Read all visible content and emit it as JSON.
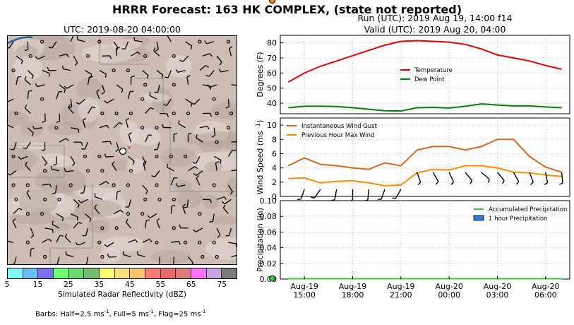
{
  "title": "HRRR Forecast: 163 HK COMPLEX, (state not reported)",
  "run": "Run (UTC): 2019 Aug 19, 14:00 f14",
  "valid": "Valid (UTC): 2019 Aug 20, 04:00",
  "map": {
    "title": "UTC: 2019-08-20 04:00:00",
    "colorbar_label": "Simulated Radar Reflectivity (dBZ)",
    "colorbar_ticks": [
      "5",
      "15",
      "25",
      "35",
      "45",
      "55",
      "65",
      "75"
    ],
    "colorbar_colors": [
      "#7ef7f7",
      "#6bbdf7",
      "#7b6ef7",
      "#73ff73",
      "#6bdb6b",
      "#73bd73",
      "#ffff73",
      "#f7e07b",
      "#ffc46b",
      "#ff7b7b",
      "#e86b6b",
      "#de7b7b",
      "#ff73ff",
      "#c8a4e0",
      "#7b7b7b"
    ],
    "barbs_note_pre": "Barbs: Half=2.5 ms",
    "barbs_note_mid1": ", Full=5 ms",
    "barbs_note_mid2": ", Flag=25 ms",
    "exp": "-1"
  },
  "chart_data": [
    {
      "type": "line",
      "ylabel": "Degrees (F)",
      "ylim": [
        33,
        85
      ],
      "yticks": [
        40,
        50,
        60,
        70,
        80
      ],
      "grid": true,
      "legend_position": "center-right",
      "x": [
        "2019-08-19 14:00",
        "15:00",
        "16:00",
        "17:00",
        "18:00",
        "19:00",
        "20:00",
        "21:00",
        "22:00",
        "23:00",
        "2019-08-20 00:00",
        "01:00",
        "02:00",
        "03:00",
        "04:00",
        "05:00",
        "06:00",
        "07:00"
      ],
      "series": [
        {
          "name": "Temperature",
          "color": "#e00000",
          "values": [
            54,
            60,
            64.5,
            68,
            71.5,
            75,
            78.5,
            81,
            81.5,
            81,
            80.5,
            79,
            76,
            72,
            70,
            68,
            65,
            62.5
          ]
        },
        {
          "name": "Dew Point",
          "color": "#008000",
          "values": [
            37,
            38,
            38,
            37.8,
            37,
            36,
            35,
            34.8,
            37,
            37.2,
            36.8,
            38,
            39.5,
            38.8,
            38.2,
            38.2,
            37.5,
            37
          ]
        }
      ],
      "highlight_x": "2019-08-20 04:00"
    },
    {
      "type": "line",
      "ylabel": "Wind Speed (ms",
      "ylabel_exp": "-1",
      "ylabel_close": ")",
      "ylim": [
        0,
        11
      ],
      "yticks": [
        0,
        2,
        4,
        6,
        8,
        10
      ],
      "grid": true,
      "legend_position": "top-left",
      "x": [
        "2019-08-19 14:00",
        "15:00",
        "16:00",
        "17:00",
        "18:00",
        "19:00",
        "20:00",
        "21:00",
        "22:00",
        "23:00",
        "2019-08-20 00:00",
        "01:00",
        "02:00",
        "03:00",
        "04:00",
        "05:00",
        "06:00",
        "07:00"
      ],
      "series": [
        {
          "name": "Instantaneous Wind Gust",
          "color": "#d2691e",
          "values": [
            4.3,
            5.4,
            4.5,
            4.3,
            4,
            3.8,
            4.7,
            4.3,
            6.5,
            7,
            7,
            6.5,
            7,
            8,
            8,
            5.6,
            4.1,
            3.4
          ]
        },
        {
          "name": "Previous Hour Max Wind",
          "color": "#ff8c00",
          "values": [
            2.5,
            2.6,
            1.9,
            2.1,
            2.2,
            1.9,
            1.5,
            1.6,
            3.3,
            3.8,
            3.7,
            4.3,
            4.3,
            4,
            3.4,
            3.3,
            3,
            2.8
          ]
        }
      ],
      "highlight_x": "2019-08-20 04:00"
    },
    {
      "type": "bar",
      "ylabel": "Precipitation (in)",
      "ylim": [
        0,
        0.1
      ],
      "yticks": [
        "0.00",
        "0.02",
        "0.04",
        "0.06",
        "0.08",
        "0.10"
      ],
      "grid": true,
      "legend_position": "top-right",
      "x": [
        "2019-08-19 14:00",
        "15:00",
        "16:00",
        "17:00",
        "18:00",
        "19:00",
        "20:00",
        "21:00",
        "22:00",
        "23:00",
        "2019-08-20 00:00",
        "01:00",
        "02:00",
        "03:00",
        "04:00",
        "05:00",
        "06:00",
        "07:00"
      ],
      "series": [
        {
          "name": "Accumulated Precipitation",
          "color": "#33cc33",
          "values": [
            0,
            0,
            0,
            0,
            0,
            0,
            0,
            0,
            0,
            0,
            0,
            0,
            0,
            0,
            0,
            0,
            0,
            0
          ]
        },
        {
          "name": "1 hour Precipitation",
          "color": "#2c7fd9",
          "values": [
            0,
            0,
            0,
            0,
            0,
            0,
            0,
            0,
            0,
            0,
            0,
            0,
            0,
            0,
            0,
            0,
            0,
            0
          ]
        }
      ],
      "xtick_labels": [
        [
          "Aug-19",
          "15:00"
        ],
        [
          "Aug-19",
          "18:00"
        ],
        [
          "Aug-19",
          "21:00"
        ],
        [
          "Aug-20",
          "00:00"
        ],
        [
          "Aug-20",
          "03:00"
        ],
        [
          "Aug-20",
          "06:00"
        ]
      ],
      "highlight_x": "2019-08-20 04:00"
    }
  ]
}
